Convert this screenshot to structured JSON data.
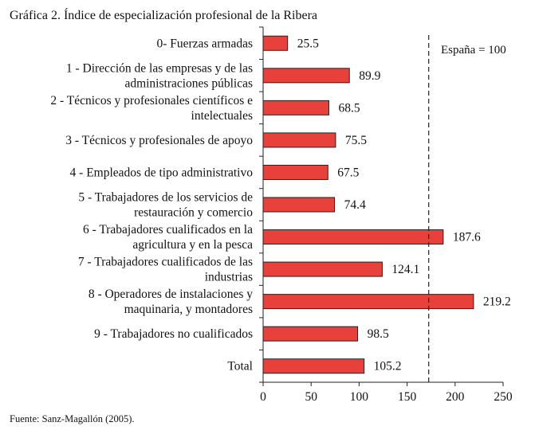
{
  "chart_data": {
    "type": "bar",
    "orientation": "horizontal",
    "title": "Gráfica 2. Índice de especialización profesional de la Ribera",
    "categories": [
      [
        "0-  Fuerzas armadas"
      ],
      [
        "1 - Dirección de las empresas y de las",
        "administraciones públicas"
      ],
      [
        "2 - Técnicos y profesionales científicos e",
        "intelectuales"
      ],
      [
        "3 - Técnicos y profesionales de apoyo"
      ],
      [
        "4 - Empleados de tipo administrativo"
      ],
      [
        "5 - Trabajadores de los servicios de",
        "restauración y comercio"
      ],
      [
        "6 - Trabajadores cualificados en la",
        "agricultura y en la pesca"
      ],
      [
        "7 - Trabajadores cualificados de las",
        "industrias"
      ],
      [
        "8 - Operadores de instalaciones y",
        "maquinaria, y montadores"
      ],
      [
        "9 - Trabajadores no cualificados"
      ],
      [
        "Total"
      ]
    ],
    "values": [
      25.5,
      89.9,
      68.5,
      75.5,
      67.5,
      74.4,
      187.6,
      124.1,
      219.2,
      98.5,
      105.2
    ],
    "value_labels": [
      "25.5",
      "89.9",
      "68.5",
      "75.5",
      "67.5",
      "74.4",
      "187.6",
      "124.1",
      "219.2",
      "98.5",
      "105.2"
    ],
    "xlim": [
      0,
      250
    ],
    "xticks": [
      0,
      50,
      100,
      150,
      200,
      250
    ],
    "reference_line": {
      "value": 172.5,
      "label": "España = 100",
      "style": "dashed"
    },
    "bar_color": "#e8413c",
    "grid": false,
    "source": "Fuente: Sanz-Magallón (2005)."
  }
}
